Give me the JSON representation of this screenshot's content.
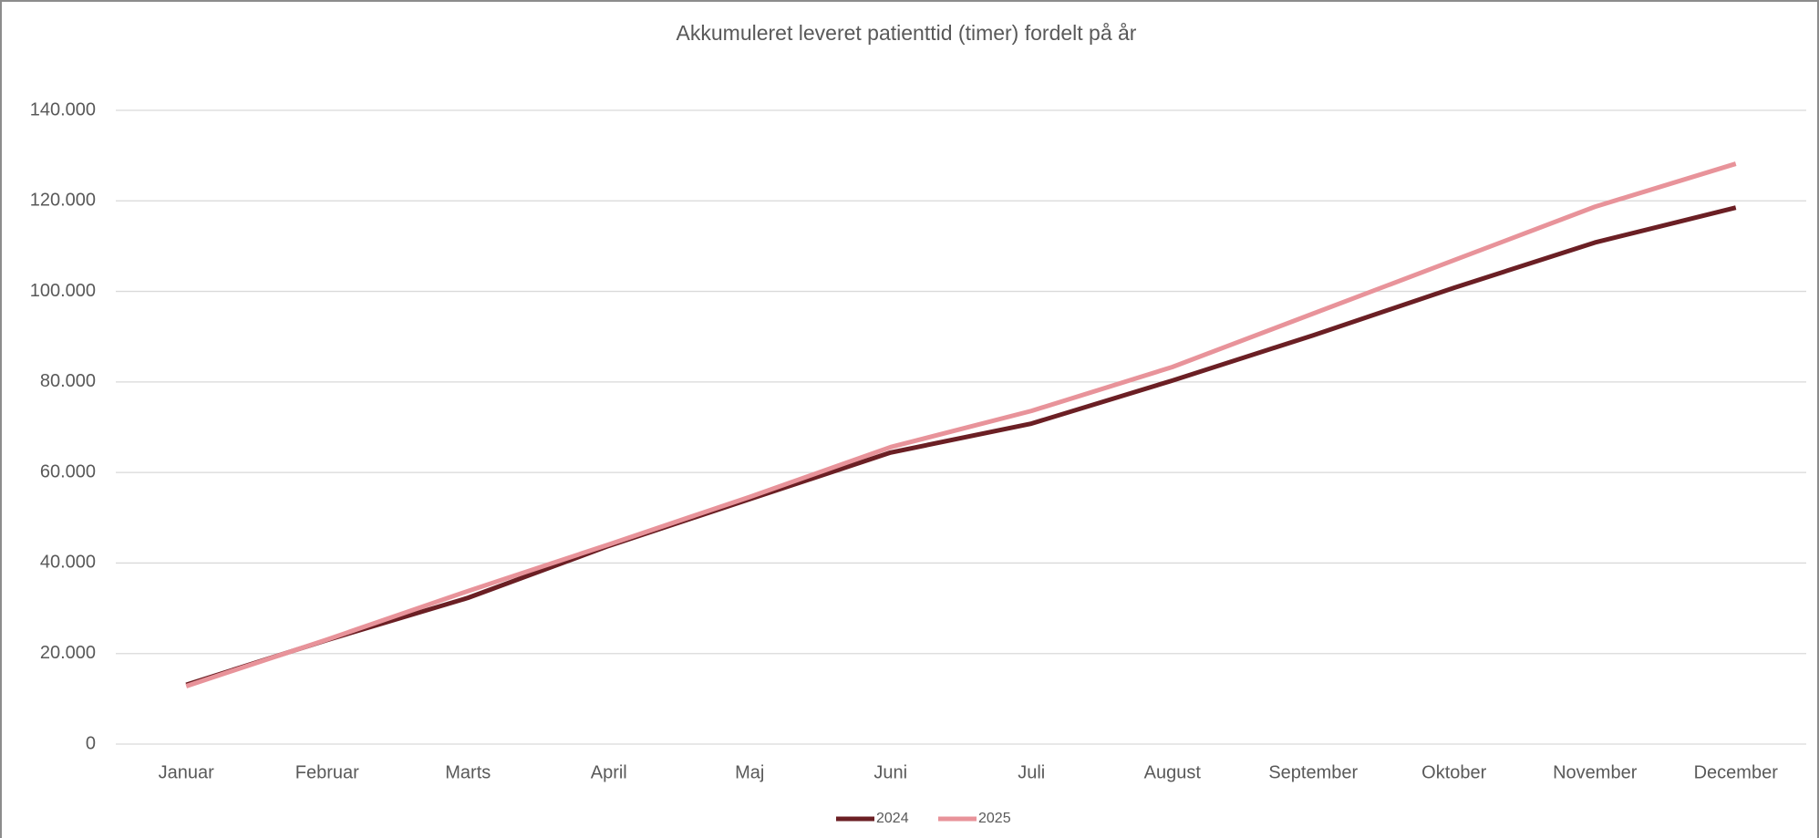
{
  "chart_data": {
    "type": "line",
    "title": "Akkumuleret leveret patienttid (timer) fordelt på år",
    "categories": [
      "Januar",
      "Februar",
      "Marts",
      "April",
      "Maj",
      "Juni",
      "Juli",
      "August",
      "September",
      "Oktober",
      "November",
      "December"
    ],
    "series": [
      {
        "name": "2024",
        "color": "#6b1f24",
        "values": [
          13100,
          23000,
          32300,
          43800,
          54100,
          64400,
          70800,
          80300,
          90300,
          100800,
          110800,
          118500
        ]
      },
      {
        "name": "2025",
        "color": "#e8939a",
        "values": [
          12800,
          23100,
          33800,
          44100,
          54600,
          65600,
          73600,
          83300,
          95100,
          106900,
          118700,
          128200
        ]
      }
    ],
    "ylim": [
      0,
      140000
    ],
    "yticks": [
      0,
      {
        "value": 20000,
        "label": "20.000"
      },
      {
        "value": 40000,
        "label": "40.000"
      },
      {
        "value": 60000,
        "label": "60.000"
      },
      {
        "value": 80000,
        "label": "80.000"
      },
      {
        "value": 100000,
        "label": "100.000"
      },
      {
        "value": 120000,
        "label": "120.000"
      },
      {
        "value": 140000,
        "label": "140.000"
      }
    ],
    "grid": true,
    "legend": "bottom"
  }
}
